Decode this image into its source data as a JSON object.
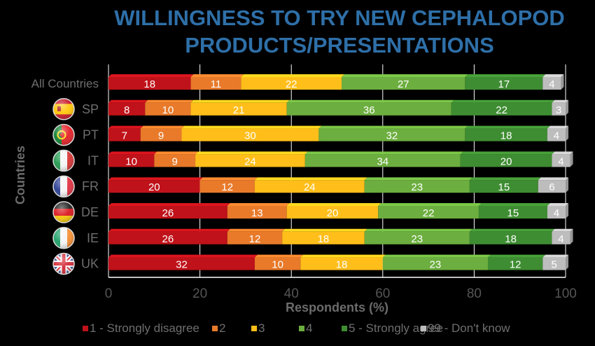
{
  "title_lines": [
    "WILLINGNESS TO TRY NEW CEPHALOPOD",
    "PRODUCTS/PRESENTATIONS"
  ],
  "chart_data": {
    "type": "bar",
    "orientation": "horizontal",
    "stacked": true,
    "title": "WILLINGNESS TO TRY NEW CEPHALOPOD PRODUCTS/PRESENTATIONS",
    "xlabel": "Respondents (%)",
    "ylabel": "Countries",
    "xlim": [
      0,
      100
    ],
    "xticks": [
      0,
      20,
      40,
      60,
      80,
      100
    ],
    "grid": true,
    "legend_position": "bottom",
    "categories": [
      "All Countries",
      "SP",
      "PT",
      "IT",
      "FR",
      "DE",
      "IE",
      "UK"
    ],
    "flags": [
      "",
      "spain-flag",
      "portugal-flag",
      "italy-flag",
      "france-flag",
      "germany-flag",
      "ireland-flag",
      "uk-flag"
    ],
    "series": [
      {
        "name": "1 - Strongly disagree",
        "color": "#c0121a",
        "values": [
          18,
          8,
          7,
          10,
          20,
          26,
          26,
          32
        ]
      },
      {
        "name": "2",
        "color": "#e87a2a",
        "values": [
          11,
          10,
          9,
          9,
          12,
          13,
          12,
          10
        ]
      },
      {
        "name": "3",
        "color": "#ffbe1a",
        "values": [
          22,
          21,
          30,
          24,
          24,
          20,
          18,
          18
        ]
      },
      {
        "name": "4",
        "color": "#6cae3f",
        "values": [
          27,
          36,
          32,
          34,
          23,
          22,
          23,
          23
        ]
      },
      {
        "name": "5 - Strongly agree",
        "color": "#3f8d32",
        "values": [
          17,
          22,
          18,
          20,
          15,
          15,
          18,
          12
        ]
      },
      {
        "name": "99 -  Don't know",
        "color": "#bdbdbd",
        "values": [
          4,
          3,
          4,
          4,
          6,
          4,
          4,
          5
        ]
      }
    ]
  }
}
